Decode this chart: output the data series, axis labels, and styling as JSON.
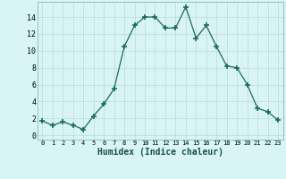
{
  "x": [
    0,
    1,
    2,
    3,
    4,
    5,
    6,
    7,
    8,
    9,
    10,
    11,
    12,
    13,
    14,
    15,
    16,
    17,
    18,
    19,
    20,
    21,
    22,
    23
  ],
  "y": [
    1.7,
    1.2,
    1.6,
    1.2,
    0.7,
    2.3,
    3.7,
    5.5,
    10.5,
    13.0,
    14.0,
    14.0,
    12.7,
    12.7,
    15.2,
    11.5,
    13.0,
    10.5,
    8.2,
    8.0,
    6.0,
    3.2,
    2.8,
    1.8
  ],
  "line_color": "#1a6b5a",
  "marker": "+",
  "marker_size": 4,
  "bg_color": "#d9f4f4",
  "grid_color": "#c0dede",
  "xlabel": "Humidex (Indice chaleur)",
  "ylim": [
    -0.5,
    15.8
  ],
  "xlim": [
    -0.5,
    23.5
  ],
  "yticks": [
    0,
    2,
    4,
    6,
    8,
    10,
    12,
    14
  ],
  "xticks": [
    0,
    1,
    2,
    3,
    4,
    5,
    6,
    7,
    8,
    9,
    10,
    11,
    12,
    13,
    14,
    15,
    16,
    17,
    18,
    19,
    20,
    21,
    22,
    23
  ]
}
